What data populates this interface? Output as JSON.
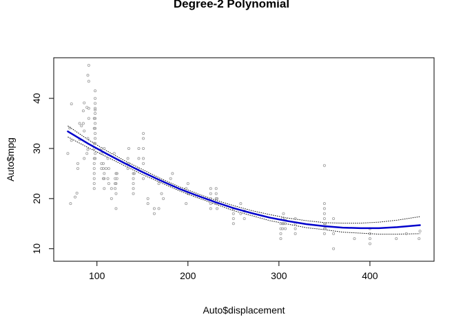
{
  "chart_data": {
    "type": "scatter",
    "title": "Degree-2 Polynomial",
    "xlabel": "Auto$displacement",
    "ylabel": "Auto$mpg",
    "xlim": [
      68,
      455
    ],
    "ylim": [
      9,
      46.6
    ],
    "x_ticks": [
      {
        "value": 100,
        "label": "100"
      },
      {
        "value": 200,
        "label": "200"
      },
      {
        "value": 300,
        "label": "300"
      },
      {
        "value": 400,
        "label": "400"
      }
    ],
    "y_ticks": [
      {
        "value": 10,
        "label": "10"
      },
      {
        "value": 20,
        "label": "20"
      },
      {
        "value": 30,
        "label": "30"
      },
      {
        "value": 40,
        "label": "40"
      }
    ],
    "grid": false,
    "legend": "none",
    "colors": {
      "points": "#9a9a9a",
      "fit": "#0000cc",
      "band": "#000000"
    },
    "points": {
      "x": [
        68,
        70,
        71,
        72,
        72,
        76,
        78,
        79,
        79,
        81,
        81,
        83,
        85,
        85,
        86,
        86,
        86,
        89,
        89,
        90,
        90,
        90,
        91,
        91,
        91,
        91,
        97,
        97,
        97,
        97,
        97,
        97,
        97,
        97,
        97,
        97,
        97,
        98,
        98,
        98,
        98,
        98,
        98,
        98,
        98,
        98,
        98,
        98,
        98,
        98,
        98,
        105,
        105,
        105,
        105,
        107,
        107,
        107,
        108,
        108,
        108,
        108,
        110,
        112,
        112,
        113,
        113,
        116,
        116,
        119,
        120,
        120,
        120,
        121,
        121,
        121,
        121,
        122,
        122,
        134,
        134,
        134,
        135,
        135,
        140,
        140,
        140,
        140,
        140,
        141,
        145,
        146,
        146,
        151,
        151,
        151,
        151,
        151,
        151,
        156,
        156,
        163,
        163,
        168,
        168,
        171,
        173,
        181,
        183,
        198,
        198,
        200,
        200,
        225,
        225,
        225,
        225,
        225,
        231,
        231,
        231,
        231,
        232,
        232,
        232,
        250,
        250,
        250,
        250,
        258,
        258,
        262,
        262,
        302,
        302,
        302,
        302,
        304,
        304,
        304,
        305,
        305,
        307,
        307,
        307,
        318,
        318,
        318,
        318,
        350,
        350,
        350,
        350,
        350,
        350,
        350,
        350,
        351,
        351,
        360,
        360,
        360,
        383,
        400,
        400,
        400,
        400,
        429,
        440,
        454,
        455
      ],
      "y": [
        29,
        34.1,
        19,
        31.6,
        38.9,
        20.3,
        21.1,
        26,
        27,
        31.8,
        35,
        34.5,
        35,
        37.5,
        28,
        33.5,
        39.1,
        38.2,
        29,
        29.8,
        32,
        44.6,
        36,
        38,
        43.4,
        46.6,
        22,
        23,
        24,
        25,
        26,
        27,
        28,
        30,
        31,
        34,
        36,
        28,
        29,
        31,
        32,
        33,
        34,
        35,
        36,
        37,
        37.7,
        38,
        39,
        40,
        41.5,
        26,
        27,
        29,
        30,
        24,
        26,
        27,
        22,
        24,
        25,
        30,
        26,
        24,
        28,
        23,
        26,
        20,
        22,
        29,
        22,
        23,
        24,
        18,
        21,
        23,
        25,
        24,
        25,
        26,
        27,
        28,
        27,
        30,
        21,
        22,
        23,
        24,
        25,
        25,
        26,
        28,
        30,
        24,
        27,
        28,
        30,
        32,
        33,
        19,
        20,
        18,
        17,
        18,
        23,
        21,
        20,
        24,
        25,
        19,
        22,
        21,
        23,
        18,
        19,
        20,
        21,
        22,
        19,
        20,
        21,
        22,
        18,
        19,
        20,
        15,
        16,
        17,
        18,
        17,
        19,
        16,
        17.5,
        12,
        13,
        14,
        15,
        14,
        15,
        16,
        15,
        17,
        14,
        15,
        16,
        13,
        14,
        15,
        16,
        13,
        14,
        15,
        16,
        17,
        18,
        19,
        26.6,
        14,
        15,
        10,
        13,
        16,
        12,
        11,
        12,
        13,
        14,
        12,
        13,
        12,
        13.5
      ]
    },
    "fit": {
      "x": [
        68,
        90,
        110,
        130,
        150,
        170,
        190,
        210,
        230,
        250,
        270,
        290,
        310,
        330,
        350,
        370,
        390,
        410,
        430,
        455
      ],
      "y": [
        33.4,
        31.0,
        29.0,
        27.1,
        25.3,
        23.6,
        22.0,
        20.6,
        19.3,
        18.1,
        17.1,
        16.2,
        15.5,
        14.9,
        14.5,
        14.2,
        14.1,
        14.1,
        14.3,
        14.7
      ]
    },
    "upper_band": {
      "x": [
        68,
        90,
        110,
        130,
        150,
        170,
        190,
        210,
        230,
        250,
        270,
        290,
        310,
        330,
        350,
        370,
        390,
        410,
        430,
        455
      ],
      "y": [
        34.5,
        31.8,
        29.6,
        27.6,
        25.8,
        24.0,
        22.4,
        21.0,
        19.7,
        18.6,
        17.6,
        16.8,
        16.1,
        15.6,
        15.2,
        15.1,
        15.1,
        15.3,
        15.7,
        16.4
      ]
    },
    "lower_band": {
      "x": [
        68,
        90,
        110,
        130,
        150,
        170,
        190,
        210,
        230,
        250,
        270,
        290,
        310,
        330,
        350,
        370,
        390,
        410,
        430,
        455
      ],
      "y": [
        32.3,
        30.2,
        28.4,
        26.6,
        24.8,
        23.2,
        21.6,
        20.2,
        18.9,
        17.6,
        16.6,
        15.6,
        14.9,
        14.2,
        13.8,
        13.3,
        13.1,
        12.9,
        12.9,
        13.0
      ]
    }
  }
}
